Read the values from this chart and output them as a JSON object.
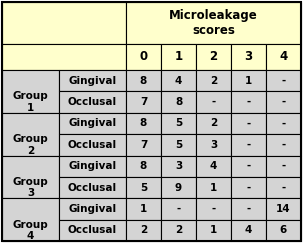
{
  "header_main": "Microleakage\nscores",
  "col_scores": [
    "0",
    "1",
    "2",
    "3",
    "4"
  ],
  "rows": [
    {
      "group": "Group\n1",
      "type": "Gingival",
      "vals": [
        "8",
        "4",
        "2",
        "1",
        "-"
      ]
    },
    {
      "group": "",
      "type": "Occlusal",
      "vals": [
        "7",
        "8",
        "-",
        "-",
        "-"
      ]
    },
    {
      "group": "Group\n2",
      "type": "Gingival",
      "vals": [
        "8",
        "5",
        "2",
        "-",
        "-"
      ]
    },
    {
      "group": "",
      "type": "Occlusal",
      "vals": [
        "7",
        "5",
        "3",
        "-",
        "-"
      ]
    },
    {
      "group": "Group\n3",
      "type": "Gingival",
      "vals": [
        "8",
        "3",
        "4",
        "-",
        "-"
      ]
    },
    {
      "group": "",
      "type": "Occlusal",
      "vals": [
        "5",
        "9",
        "1",
        "-",
        "-"
      ]
    },
    {
      "group": "Group\n4",
      "type": "Gingival",
      "vals": [
        "1",
        "-",
        "-",
        "-",
        "14"
      ]
    },
    {
      "group": "",
      "type": "Occlusal",
      "vals": [
        "2",
        "2",
        "1",
        "4",
        "6"
      ]
    }
  ],
  "header_bg": "#ffffcc",
  "row_bg": "#d4d4d4",
  "border_color": "#000000",
  "figw": 3.03,
  "figh": 2.43,
  "dpi": 100
}
